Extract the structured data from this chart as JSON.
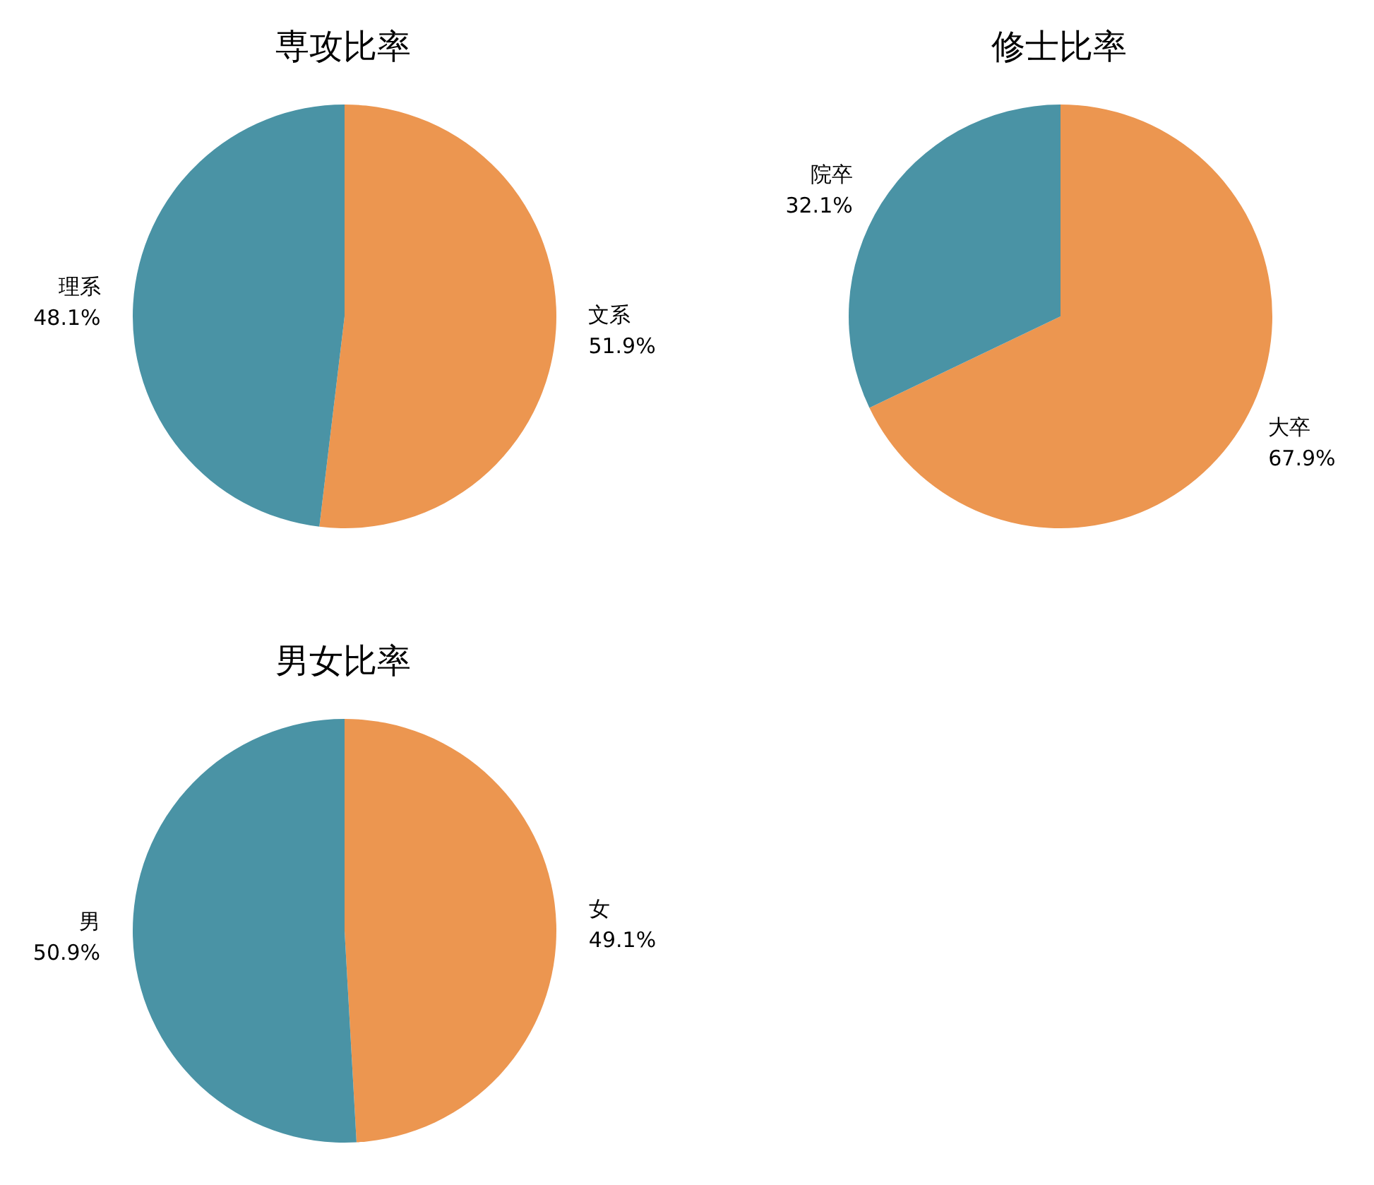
{
  "chart_data": [
    {
      "type": "pie",
      "title": "専攻比率",
      "categories": [
        "文系",
        "理系"
      ],
      "values": [
        51.9,
        48.1
      ],
      "colors": [
        "#ec9650",
        "#4a93a5"
      ],
      "value_labels": [
        "51.9%",
        "48.1%"
      ]
    },
    {
      "type": "pie",
      "title": "修士比率",
      "categories": [
        "大卒",
        "院卒"
      ],
      "values": [
        67.9,
        32.1
      ],
      "colors": [
        "#ec9650",
        "#4a93a5"
      ],
      "value_labels": [
        "67.9%",
        "32.1%"
      ]
    },
    {
      "type": "pie",
      "title": "男女比率",
      "categories": [
        "女",
        "男"
      ],
      "values": [
        49.1,
        50.9
      ],
      "colors": [
        "#ec9650",
        "#4a93a5"
      ],
      "value_labels": [
        "49.1%",
        "50.9%"
      ]
    }
  ]
}
